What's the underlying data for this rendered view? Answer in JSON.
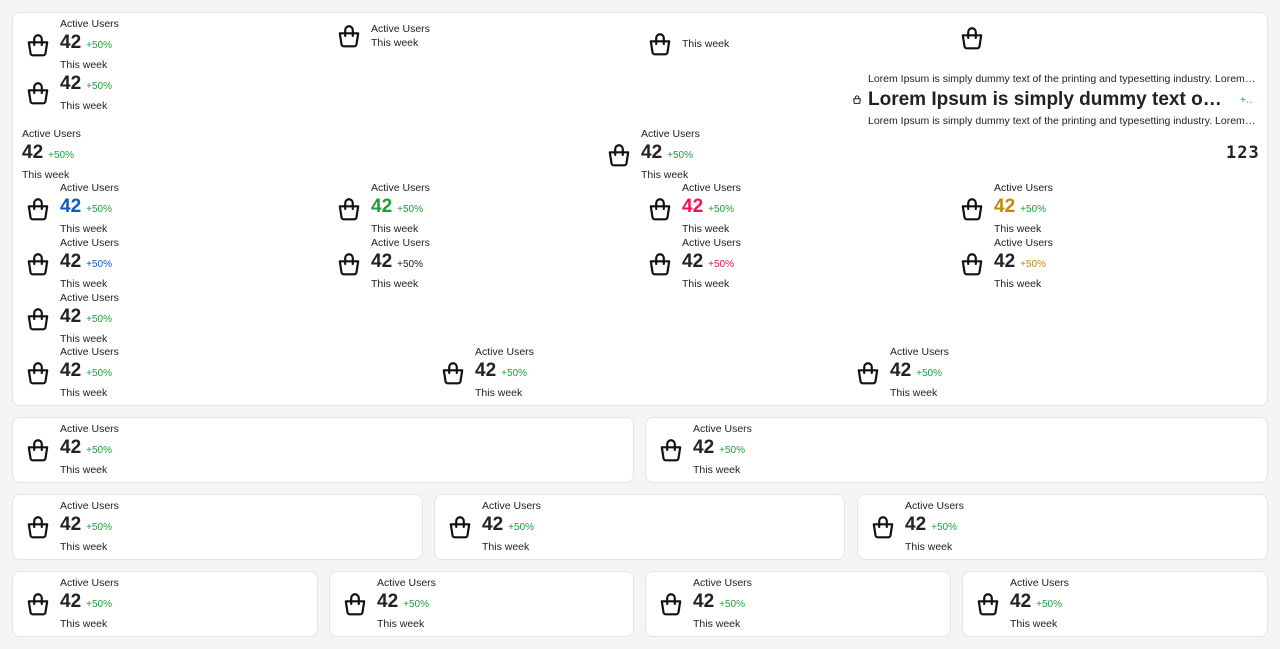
{
  "colors": {
    "blue": "#0d5bbd",
    "green": "#1f9d3a",
    "red": "#f0134d",
    "gold": "#c08a0b",
    "text": "#222222"
  },
  "main_widgets": [
    {
      "icon": "shopping-bag-icon",
      "label": "Active Users",
      "value": "42",
      "delta": "+50%",
      "week": "This week"
    },
    {
      "icon": "shopping-bag-icon",
      "label": "Active Users",
      "week": "This week"
    },
    {
      "icon": "shopping-bag-icon",
      "week": "This week"
    },
    {
      "icon": "shopping-bag-icon"
    },
    {
      "icon": "shopping-bag-icon",
      "value": "42",
      "delta": "+50%",
      "week": "This week"
    },
    {
      "label": "Active Users",
      "value": "42",
      "delta": "+50%",
      "week": "This week"
    },
    {
      "icon": "shopping-bag-icon",
      "label": "Active Users",
      "value": "42",
      "delta": "+50%",
      "week": "This week"
    },
    {
      "icon": "shopping-bag-icon",
      "label": "Active Users",
      "value": "42",
      "delta": "+50%",
      "week": "This week",
      "value_color": "#0d5bbd",
      "delta_color": "#1f9d3a"
    },
    {
      "icon": "shopping-bag-icon",
      "label": "Active Users",
      "value": "42",
      "delta": "+50%",
      "week": "This week",
      "value_color": "#1f9d3a",
      "delta_color": "#1f9d3a"
    },
    {
      "icon": "shopping-bag-icon",
      "label": "Active Users",
      "value": "42",
      "delta": "+50%",
      "week": "This week",
      "value_color": "#f0134d",
      "delta_color": "#1f9d3a"
    },
    {
      "icon": "shopping-bag-icon",
      "label": "Active Users",
      "value": "42",
      "delta": "+50%",
      "week": "This week",
      "value_color": "#c08a0b",
      "delta_color": "#1f9d3a"
    },
    {
      "icon": "shopping-bag-icon",
      "label": "Active Users",
      "value": "42",
      "delta": "+50%",
      "week": "This week",
      "delta_color": "#0d5bbd"
    },
    {
      "icon": "shopping-bag-icon",
      "label": "Active Users",
      "value": "42",
      "delta": "+50%",
      "week": "This week",
      "delta_color": "#222222"
    },
    {
      "icon": "shopping-bag-icon",
      "label": "Active Users",
      "value": "42",
      "delta": "+50%",
      "week": "This week",
      "delta_color": "#f0134d"
    },
    {
      "icon": "shopping-bag-icon",
      "label": "Active Users",
      "value": "42",
      "delta": "+50%",
      "week": "This week",
      "delta_color": "#c08a0b"
    },
    {
      "icon": "shopping-bag-icon",
      "label": "Active Users",
      "value": "42",
      "delta": "+50%",
      "week": "This week"
    },
    {
      "icon": "shopping-bag-icon",
      "label": "Active Users",
      "value": "42",
      "delta": "+50%",
      "week": "This week"
    },
    {
      "icon": "shopping-bag-icon",
      "label": "Active Users",
      "value": "42",
      "delta": "+50%",
      "week": "This week"
    },
    {
      "icon": "shopping-bag-icon",
      "label": "Active Users",
      "value": "42",
      "delta": "+50%",
      "week": "This week"
    }
  ],
  "lorem": {
    "icon": "shopping-bag-icon",
    "top": "Lorem Ipsum is simply dummy text of the printing and typesetting industry. Lorem Ipsum has been the industry's standard dummy text",
    "title": "Lorem Ipsum is simply dummy text of the printing and typesetting industry",
    "delta": "+50%",
    "bottom": "Lorem Ipsum is simply dummy text of the printing and typesetting industry. Lorem Ipsum has been the industry's standard dummy text"
  },
  "number_display": "123",
  "cards": [
    {
      "icon": "shopping-bag-icon",
      "label": "Active Users",
      "value": "42",
      "delta": "+50%",
      "week": "This week"
    },
    {
      "icon": "shopping-bag-icon",
      "label": "Active Users",
      "value": "42",
      "delta": "+50%",
      "week": "This week"
    },
    {
      "icon": "shopping-bag-icon",
      "label": "Active Users",
      "value": "42",
      "delta": "+50%",
      "week": "This week"
    },
    {
      "icon": "shopping-bag-icon",
      "label": "Active Users",
      "value": "42",
      "delta": "+50%",
      "week": "This week"
    },
    {
      "icon": "shopping-bag-icon",
      "label": "Active Users",
      "value": "42",
      "delta": "+50%",
      "week": "This week"
    },
    {
      "icon": "shopping-bag-icon",
      "label": "Active Users",
      "value": "42",
      "delta": "+50%",
      "week": "This week"
    },
    {
      "icon": "shopping-bag-icon",
      "label": "Active Users",
      "value": "42",
      "delta": "+50%",
      "week": "This week"
    },
    {
      "icon": "shopping-bag-icon",
      "label": "Active Users",
      "value": "42",
      "delta": "+50%",
      "week": "This week"
    },
    {
      "icon": "shopping-bag-icon",
      "label": "Active Users",
      "value": "42",
      "delta": "+50%",
      "week": "This week"
    }
  ]
}
